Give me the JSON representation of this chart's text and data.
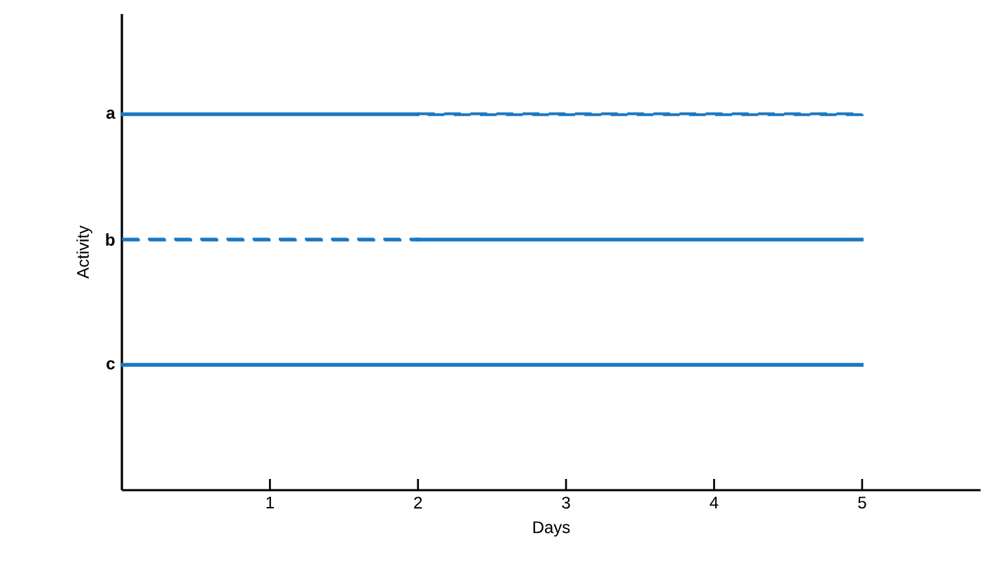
{
  "chart_data": {
    "type": "bar",
    "orientation": "horizontal",
    "stacked": false,
    "categories": [
      "a",
      "b",
      "c"
    ],
    "xlabel": "Days",
    "ylabel": "Activity",
    "xlim": [
      0,
      5.8
    ],
    "xticks": [
      1,
      2,
      3,
      4,
      5
    ],
    "series": [
      {
        "color": "#1a78c2",
        "line_style": "solid",
        "base": [
          0,
          2,
          0
        ],
        "values": [
          2,
          3,
          5
        ]
      },
      {
        "color": "#1a78c2",
        "line_style": "dashed",
        "base": [
          2,
          0,
          null
        ],
        "values": [
          3,
          2,
          null
        ]
      }
    ]
  }
}
